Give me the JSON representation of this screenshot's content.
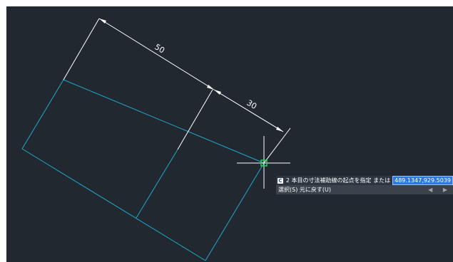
{
  "drawing": {
    "dimensions": [
      {
        "label": "50"
      },
      {
        "label": "30"
      }
    ],
    "colors": {
      "background": "#212830",
      "geometry": "#1fa8c9",
      "dimension": "#ffffff",
      "snap_marker": "#2fcf5a"
    }
  },
  "command_prompt": {
    "icon": "command-icon",
    "prompt_text": "2 本目の寸法補助線の起点を指定 または",
    "coordinate_value": "489.1347,929.5039",
    "options_text": "選択(S)  元に戻す(U)",
    "nav_arrows": "◀ ▶"
  }
}
